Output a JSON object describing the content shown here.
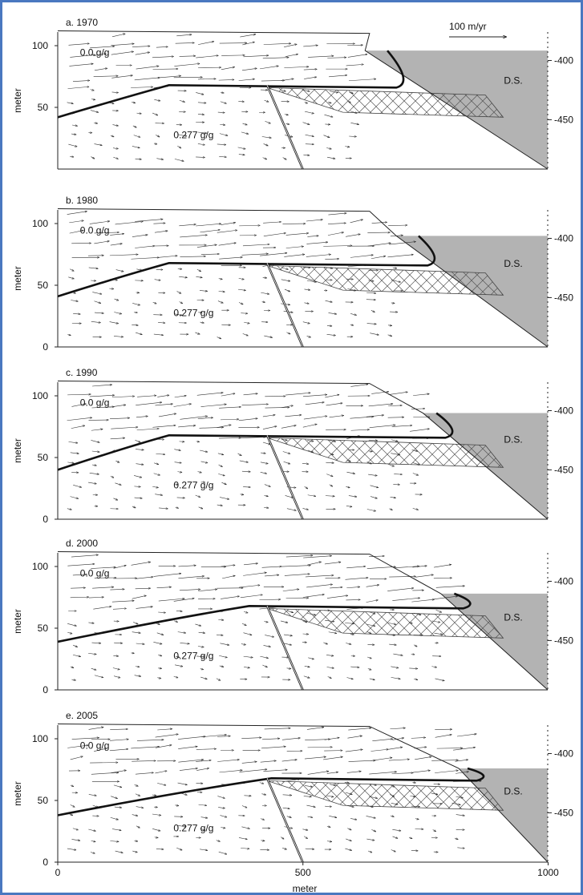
{
  "scale_label": "100 m/yr",
  "panels": [
    {
      "title": "a. 1970",
      "y_label": "meter",
      "upper_label": "0.0 g/g",
      "lower_label": "0.277 g/g",
      "sea_label": "D.S.",
      "left_ticks": [
        "100",
        "50"
      ],
      "right_ticks": [
        "-400",
        "-450"
      ]
    },
    {
      "title": "b. 1980",
      "y_label": "meter",
      "upper_label": "0.0 g/g",
      "lower_label": "0.277 g/g",
      "sea_label": "D.S.",
      "left_ticks": [
        "100",
        "50",
        "0"
      ],
      "right_ticks": [
        "-400",
        "-450"
      ]
    },
    {
      "title": "c. 1990",
      "y_label": "meter",
      "upper_label": "0.0 g/g",
      "lower_label": "0.277 g/g",
      "sea_label": "D.S.",
      "left_ticks": [
        "100",
        "50",
        "0"
      ],
      "right_ticks": [
        "-400",
        "-450"
      ]
    },
    {
      "title": "d. 2000",
      "y_label": "meter",
      "upper_label": "0.0 g/g",
      "lower_label": "0.277 g/g",
      "sea_label": "D.S.",
      "left_ticks": [
        "100",
        "50",
        "0"
      ],
      "right_ticks": [
        "-400",
        "-450"
      ]
    },
    {
      "title": "e. 2005",
      "y_label": "meter",
      "upper_label": "0.0 g/g",
      "lower_label": "0.277 g/g",
      "sea_label": "D.S.",
      "left_ticks": [
        "100",
        "50",
        "0"
      ],
      "right_ticks": [
        "-400",
        "-450"
      ]
    }
  ],
  "x_ticks": [
    "0",
    "500",
    "1000"
  ],
  "x_label": "meter"
}
